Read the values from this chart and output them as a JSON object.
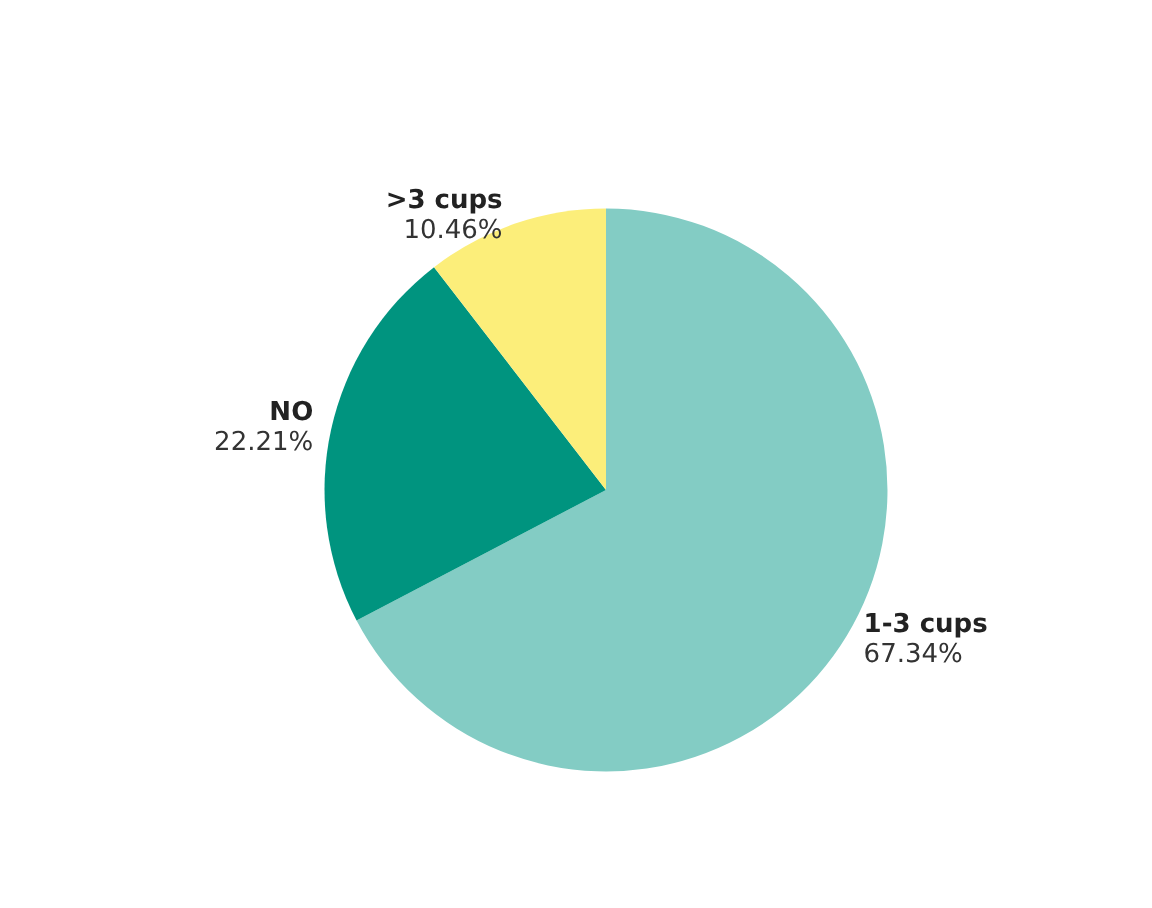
{
  "chart_data": {
    "type": "pie",
    "categories": [
      "1-3 cups",
      "NO",
      ">3 cups"
    ],
    "values": [
      67.34,
      22.21,
      10.46
    ],
    "value_labels": [
      "67.34%",
      "22.21%",
      "10.46%"
    ],
    "colors": [
      "#83ccc4",
      "#00947f",
      "#fcee7a"
    ]
  }
}
